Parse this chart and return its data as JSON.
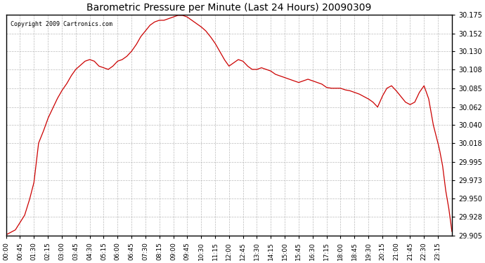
{
  "title": "Barometric Pressure per Minute (Last 24 Hours) 20090309",
  "copyright": "Copyright 2009 Cartronics.com",
  "background_color": "#ffffff",
  "plot_bg_color": "#ffffff",
  "line_color": "#cc0000",
  "grid_color": "#aaaaaa",
  "ylim": [
    29.905,
    30.175
  ],
  "yticks": [
    29.905,
    29.928,
    29.95,
    29.973,
    29.995,
    30.018,
    30.04,
    30.062,
    30.085,
    30.108,
    30.13,
    30.152,
    30.175
  ],
  "xtick_labels": [
    "00:00",
    "00:45",
    "01:30",
    "02:15",
    "03:00",
    "03:45",
    "04:30",
    "05:15",
    "06:00",
    "06:45",
    "07:30",
    "08:15",
    "09:00",
    "09:45",
    "10:30",
    "11:15",
    "12:00",
    "12:45",
    "13:30",
    "14:15",
    "15:00",
    "15:45",
    "16:30",
    "17:15",
    "18:00",
    "18:45",
    "19:30",
    "20:15",
    "21:00",
    "21:45",
    "22:30",
    "23:15"
  ],
  "key_points": [
    [
      0,
      29.906
    ],
    [
      30,
      29.912
    ],
    [
      60,
      29.93
    ],
    [
      75,
      29.948
    ],
    [
      90,
      29.97
    ],
    [
      105,
      30.018
    ],
    [
      120,
      30.032
    ],
    [
      135,
      30.048
    ],
    [
      150,
      30.06
    ],
    [
      165,
      30.072
    ],
    [
      180,
      30.082
    ],
    [
      195,
      30.09
    ],
    [
      210,
      30.1
    ],
    [
      225,
      30.108
    ],
    [
      240,
      30.113
    ],
    [
      255,
      30.118
    ],
    [
      270,
      30.12
    ],
    [
      285,
      30.118
    ],
    [
      300,
      30.112
    ],
    [
      315,
      30.11
    ],
    [
      330,
      30.108
    ],
    [
      345,
      30.112
    ],
    [
      360,
      30.118
    ],
    [
      375,
      30.12
    ],
    [
      390,
      30.124
    ],
    [
      405,
      30.13
    ],
    [
      420,
      30.138
    ],
    [
      435,
      30.148
    ],
    [
      450,
      30.155
    ],
    [
      465,
      30.162
    ],
    [
      480,
      30.166
    ],
    [
      495,
      30.168
    ],
    [
      510,
      30.168
    ],
    [
      525,
      30.17
    ],
    [
      540,
      30.172
    ],
    [
      555,
      30.174
    ],
    [
      570,
      30.174
    ],
    [
      585,
      30.172
    ],
    [
      600,
      30.168
    ],
    [
      615,
      30.164
    ],
    [
      630,
      30.16
    ],
    [
      645,
      30.155
    ],
    [
      660,
      30.148
    ],
    [
      675,
      30.14
    ],
    [
      690,
      30.13
    ],
    [
      705,
      30.12
    ],
    [
      720,
      30.112
    ],
    [
      735,
      30.116
    ],
    [
      750,
      30.12
    ],
    [
      765,
      30.118
    ],
    [
      780,
      30.112
    ],
    [
      795,
      30.108
    ],
    [
      810,
      30.108
    ],
    [
      825,
      30.11
    ],
    [
      840,
      30.108
    ],
    [
      855,
      30.106
    ],
    [
      870,
      30.102
    ],
    [
      885,
      30.1
    ],
    [
      900,
      30.098
    ],
    [
      915,
      30.096
    ],
    [
      930,
      30.094
    ],
    [
      945,
      30.092
    ],
    [
      960,
      30.094
    ],
    [
      975,
      30.096
    ],
    [
      990,
      30.094
    ],
    [
      1005,
      30.092
    ],
    [
      1020,
      30.09
    ],
    [
      1035,
      30.086
    ],
    [
      1050,
      30.085
    ],
    [
      1065,
      30.085
    ],
    [
      1080,
      30.085
    ],
    [
      1095,
      30.083
    ],
    [
      1110,
      30.082
    ],
    [
      1125,
      30.08
    ],
    [
      1140,
      30.078
    ],
    [
      1155,
      30.075
    ],
    [
      1170,
      30.072
    ],
    [
      1185,
      30.068
    ],
    [
      1200,
      30.062
    ],
    [
      1215,
      30.075
    ],
    [
      1230,
      30.085
    ],
    [
      1245,
      30.088
    ],
    [
      1260,
      30.082
    ],
    [
      1275,
      30.075
    ],
    [
      1290,
      30.068
    ],
    [
      1305,
      30.065
    ],
    [
      1320,
      30.068
    ],
    [
      1335,
      30.08
    ],
    [
      1350,
      30.088
    ],
    [
      1365,
      30.072
    ],
    [
      1380,
      30.04
    ],
    [
      1395,
      30.018
    ],
    [
      1400,
      30.01
    ],
    [
      1410,
      29.99
    ],
    [
      1420,
      29.96
    ],
    [
      1430,
      29.938
    ],
    [
      1440,
      29.91
    ]
  ]
}
